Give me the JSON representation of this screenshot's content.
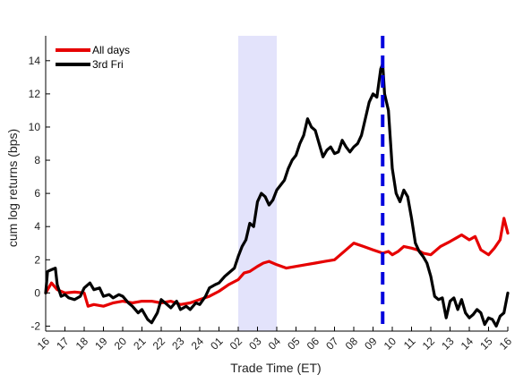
{
  "chart_data": {
    "type": "line",
    "xlabel": "Trade Time (ET)",
    "ylabel": "cum log returns (bps)",
    "x_ticks": [
      "16",
      "17",
      "18",
      "19",
      "20",
      "21",
      "22",
      "23",
      "24",
      "01",
      "02",
      "03",
      "04",
      "05",
      "06",
      "07",
      "08",
      "09",
      "10",
      "11",
      "12",
      "13",
      "14",
      "15",
      "16"
    ],
    "ylim": [
      -2.3,
      15.5
    ],
    "y_ticks": [
      -2,
      0,
      2,
      4,
      6,
      8,
      10,
      12,
      14
    ],
    "grid": false,
    "legend_position": "top-left",
    "shaded_region": {
      "x_start": 10,
      "x_end": 12,
      "color": "#e3e3fb"
    },
    "vertical_line": {
      "x": 17.5,
      "style": "dashed",
      "color": "#0000dd"
    },
    "series": [
      {
        "name": "All days",
        "color": "#e60000",
        "x": [
          0,
          0.3,
          0.6,
          1,
          1.5,
          2,
          2.2,
          2.5,
          3,
          3.5,
          4,
          4.5,
          5,
          5.5,
          6,
          6.5,
          7,
          7.5,
          8,
          8.5,
          9,
          9.5,
          10,
          10.3,
          10.6,
          11,
          11.3,
          11.6,
          12,
          12.5,
          13,
          13.5,
          14,
          14.5,
          15,
          15.3,
          15.6,
          16,
          16.5,
          17,
          17.5,
          17.8,
          18,
          18.3,
          18.6,
          19,
          19.3,
          19.6,
          20,
          20.5,
          21,
          21.3,
          21.6,
          22,
          22.3,
          22.6,
          23,
          23.3,
          23.6,
          23.8,
          24
        ],
        "y": [
          0,
          0.6,
          0.2,
          0.0,
          0.05,
          0.0,
          -0.8,
          -0.7,
          -0.8,
          -0.6,
          -0.5,
          -0.6,
          -0.5,
          -0.5,
          -0.6,
          -0.5,
          -0.7,
          -0.6,
          -0.4,
          -0.2,
          0.1,
          0.5,
          0.8,
          1.2,
          1.3,
          1.6,
          1.8,
          1.9,
          1.7,
          1.5,
          1.6,
          1.7,
          1.8,
          1.9,
          2.0,
          2.3,
          2.6,
          3.0,
          2.8,
          2.6,
          2.4,
          2.5,
          2.3,
          2.5,
          2.8,
          2.7,
          2.6,
          2.4,
          2.3,
          2.8,
          3.1,
          3.3,
          3.5,
          3.2,
          3.4,
          2.6,
          2.3,
          2.7,
          3.2,
          4.5,
          3.6
        ]
      },
      {
        "name": "3rd Fri",
        "color": "#000000",
        "x": [
          0,
          0.1,
          0.3,
          0.5,
          0.6,
          0.8,
          1,
          1.2,
          1.5,
          1.8,
          2.0,
          2.3,
          2.5,
          2.8,
          3.0,
          3.3,
          3.5,
          3.8,
          4.0,
          4.3,
          4.5,
          4.8,
          5.0,
          5.3,
          5.5,
          5.8,
          6.0,
          6.3,
          6.5,
          6.8,
          7.0,
          7.3,
          7.5,
          7.8,
          8.0,
          8.3,
          8.5,
          8.8,
          9.0,
          9.3,
          9.5,
          9.8,
          10.0,
          10.2,
          10.4,
          10.6,
          10.8,
          11.0,
          11.2,
          11.4,
          11.6,
          11.8,
          12.0,
          12.2,
          12.4,
          12.6,
          12.8,
          13.0,
          13.2,
          13.4,
          13.6,
          13.8,
          14.0,
          14.2,
          14.4,
          14.6,
          14.8,
          15.0,
          15.2,
          15.4,
          15.6,
          15.8,
          16.0,
          16.2,
          16.4,
          16.6,
          16.8,
          17.0,
          17.2,
          17.4,
          17.5,
          17.6,
          17.8,
          18.0,
          18.2,
          18.4,
          18.6,
          18.8,
          19.0,
          19.2,
          19.4,
          19.6,
          19.8,
          20.0,
          20.2,
          20.4,
          20.6,
          20.8,
          21.0,
          21.2,
          21.4,
          21.6,
          21.8,
          22.0,
          22.2,
          22.4,
          22.6,
          22.8,
          23.0,
          23.2,
          23.4,
          23.6,
          23.8,
          24.0
        ],
        "y": [
          0,
          1.3,
          1.4,
          1.5,
          0.5,
          -0.2,
          -0.1,
          -0.3,
          -0.4,
          -0.2,
          0.3,
          0.6,
          0.2,
          0.3,
          -0.2,
          -0.1,
          -0.3,
          -0.1,
          -0.2,
          -0.6,
          -0.8,
          -1.2,
          -1.0,
          -1.6,
          -1.8,
          -1.2,
          -0.4,
          -0.7,
          -0.9,
          -0.5,
          -1.0,
          -0.8,
          -1.0,
          -0.6,
          -0.7,
          -0.2,
          0.3,
          0.5,
          0.6,
          1.0,
          1.2,
          1.5,
          2.2,
          2.8,
          3.2,
          4.2,
          4.0,
          5.5,
          6.0,
          5.8,
          5.3,
          5.6,
          6.2,
          6.5,
          6.8,
          7.5,
          8.0,
          8.3,
          9.0,
          9.5,
          10.5,
          10.0,
          9.8,
          9.0,
          8.2,
          8.6,
          8.8,
          8.4,
          8.5,
          9.2,
          8.8,
          8.5,
          8.8,
          9.0,
          9.5,
          10.5,
          11.5,
          12.0,
          11.8,
          13.5,
          13.8,
          12.0,
          11.0,
          7.5,
          6.0,
          5.5,
          6.2,
          5.8,
          4.5,
          3.0,
          2.5,
          2.2,
          1.8,
          1.0,
          -0.2,
          -0.4,
          -0.3,
          -1.5,
          -0.5,
          -0.3,
          -1.0,
          -0.4,
          -1.2,
          -1.5,
          -1.3,
          -1.0,
          -1.2,
          -1.9,
          -1.5,
          -1.6,
          -2.0,
          -1.4,
          -1.2,
          0.0
        ]
      }
    ]
  }
}
